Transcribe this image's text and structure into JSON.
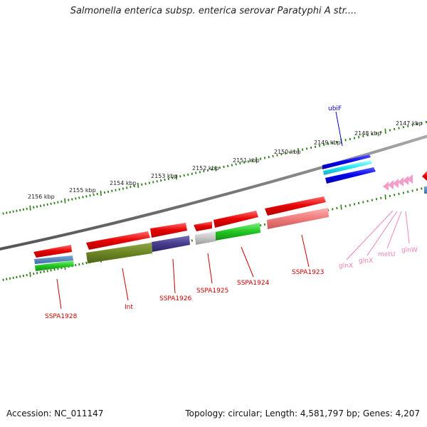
{
  "title": "Salmonella enterica subsp. enterica serovar Paratyphi A str....",
  "footer": {
    "accession": "Accession: NC_011147",
    "summary": "Topology: circular; Length: 4,581,797 bp; Genes: 4,207"
  },
  "ticks": [
    "2147 kbp",
    "2148 kbp",
    "2149 kbp",
    "2150 kbp",
    "2151 kbp",
    "2152 kbp",
    "2153 kbp",
    "2154 kbp",
    "2155 kbp",
    "2156 kbp"
  ],
  "genes": {
    "ubiF": "ubiF",
    "SSPA1923": "SSPA1923",
    "SSPA1924": "SSPA1924",
    "SSPA1925": "SSPA1925",
    "SSPA1926": "SSPA1926",
    "Int": "Int",
    "SSPA1928": "SSPA1928",
    "glnX1": "glnX",
    "glnX2": "glnX",
    "metU": "metU",
    "glnW": "glnW"
  },
  "colors": {
    "cds": "#e8000a",
    "backbone": "#777777",
    "tick": "#2e7d1a",
    "label_red": "#cc0000",
    "label_blue": "#0000cc",
    "label_pink": "#f080b8"
  }
}
